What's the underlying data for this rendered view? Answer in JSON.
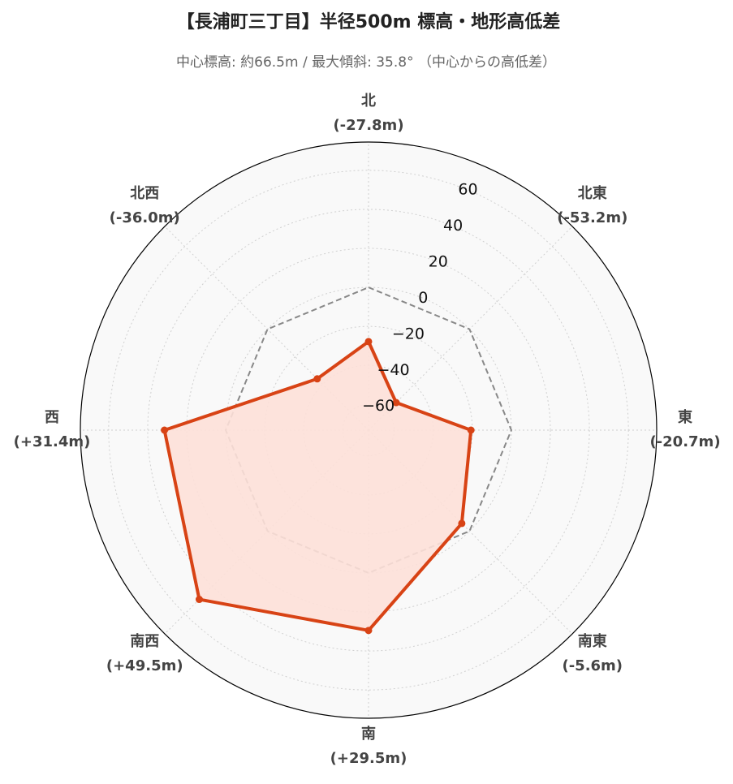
{
  "chart_data": {
    "type": "radar",
    "title": "【長浦町三丁目】半径500m 標高・地形高低差",
    "subtitle": "中心標高: 約66.5m / 最大傾斜: 35.8° （中心からの高低差）",
    "categories": [
      "北",
      "北東",
      "東",
      "南東",
      "南",
      "南西",
      "西",
      "北西"
    ],
    "values": [
      -27.8,
      -53.2,
      -20.7,
      -5.6,
      29.5,
      49.5,
      31.4,
      -36.0
    ],
    "value_labels": [
      "(-27.8m)",
      "(-53.2m)",
      "(-20.7m)",
      "(-5.6m)",
      "(+29.5m)",
      "(+49.5m)",
      "(+31.4m)",
      "(-36.0m)"
    ],
    "color": "#d84315",
    "fill_color": "#fde0d8",
    "reference_line": 0,
    "ylim": [
      -73.2,
      74.5
    ],
    "yticks": [
      {
        "value": -60,
        "label": "−60"
      },
      {
        "value": -40,
        "label": "−40"
      },
      {
        "value": -20,
        "label": "−20"
      },
      0,
      20,
      40,
      60
    ],
    "grid": true
  }
}
